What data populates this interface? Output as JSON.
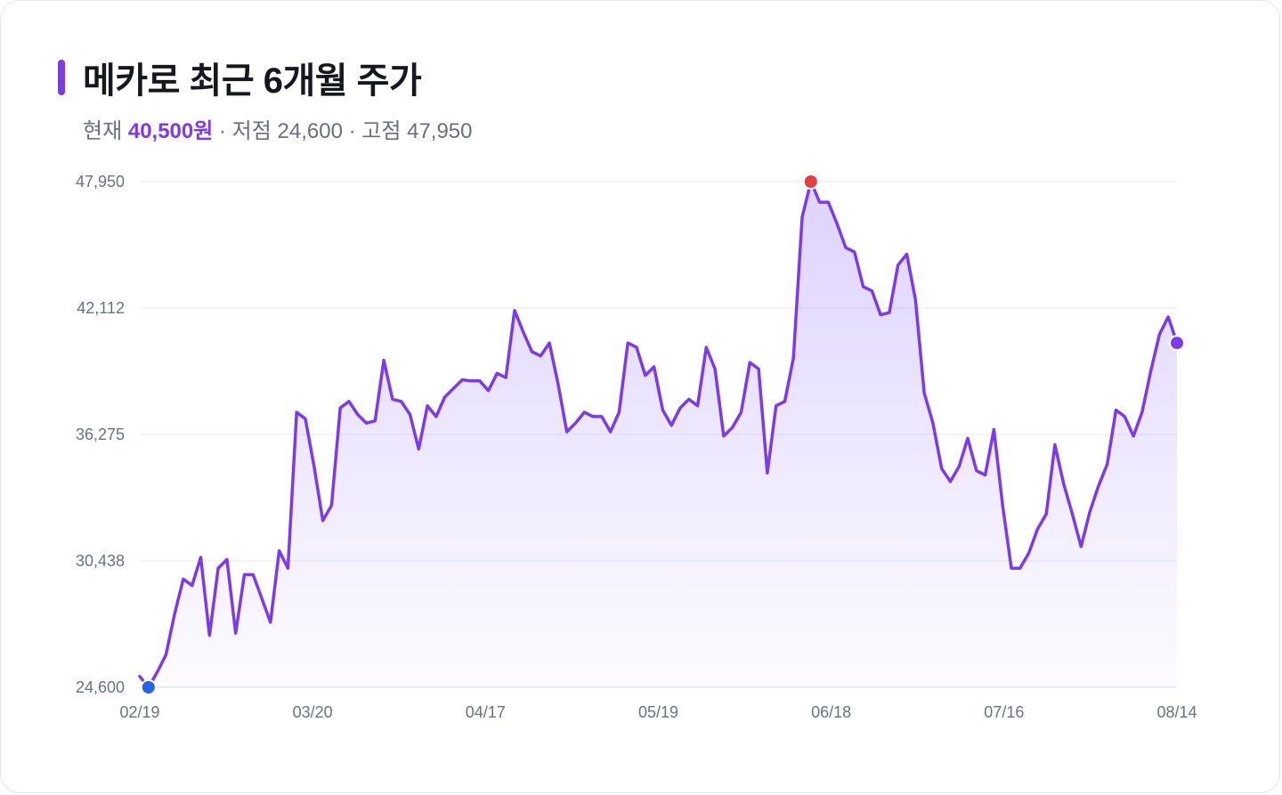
{
  "title": "메카로 최근 6개월 주가",
  "summary": {
    "current_label": "현재",
    "current_value": "40,500원",
    "sep1": " · ",
    "low_label": "저점",
    "low_value": "24,600",
    "sep2": " · ",
    "high_label": "고점",
    "high_value": "47,950"
  },
  "colors": {
    "line": "#7c3aed",
    "fill": "#a78bfa",
    "low_marker": "#2563eb",
    "high_marker": "#e53e3e",
    "current_marker": "#7c3aed"
  },
  "chart_data": {
    "type": "area",
    "title": "메카로 최근 6개월 주가",
    "xlabel": "",
    "ylabel": "",
    "ylim": [
      24600,
      47950
    ],
    "yticks": [
      "47,950",
      "42,112",
      "36,275",
      "30,438",
      "24,600"
    ],
    "ytick_values": [
      47950,
      42112,
      36275,
      30438,
      24600
    ],
    "xticks": [
      "02/19",
      "03/20",
      "04/17",
      "05/19",
      "06/18",
      "07/16",
      "08/14"
    ],
    "grid": true,
    "legend": "none",
    "values": [
      25100,
      24600,
      25300,
      26100,
      28000,
      29600,
      29300,
      30600,
      27000,
      30100,
      30500,
      27100,
      29800,
      29800,
      28700,
      27600,
      30900,
      30100,
      37300,
      37000,
      34800,
      32300,
      33000,
      37500,
      37800,
      37200,
      36800,
      36900,
      39700,
      37900,
      37800,
      37200,
      35600,
      37600,
      37100,
      38000,
      38400,
      38800,
      38750,
      38750,
      38300,
      39100,
      38900,
      42000,
      41000,
      40100,
      39900,
      40500,
      38600,
      36400,
      36800,
      37300,
      37100,
      37100,
      36400,
      37300,
      40500,
      40300,
      39000,
      39400,
      37400,
      36700,
      37500,
      37900,
      37600,
      40300,
      39300,
      36200,
      36600,
      37300,
      39600,
      39300,
      34500,
      37600,
      37800,
      39800,
      46300,
      47950,
      47000,
      47000,
      46000,
      44900,
      44700,
      43100,
      42900,
      41800,
      41900,
      44100,
      44600,
      42500,
      38200,
      36800,
      34700,
      34100,
      34800,
      36100,
      34600,
      34400,
      36500,
      33000,
      30100,
      30100,
      30800,
      31900,
      32600,
      35800,
      34000,
      32600,
      31100,
      32700,
      33900,
      34900,
      37400,
      37100,
      36200,
      37300,
      39200,
      40900,
      41700,
      40500
    ],
    "markers": [
      {
        "label": "저점",
        "value": 24600
      },
      {
        "label": "고점",
        "value": 47950
      },
      {
        "label": "현재",
        "value": 40500
      }
    ]
  }
}
